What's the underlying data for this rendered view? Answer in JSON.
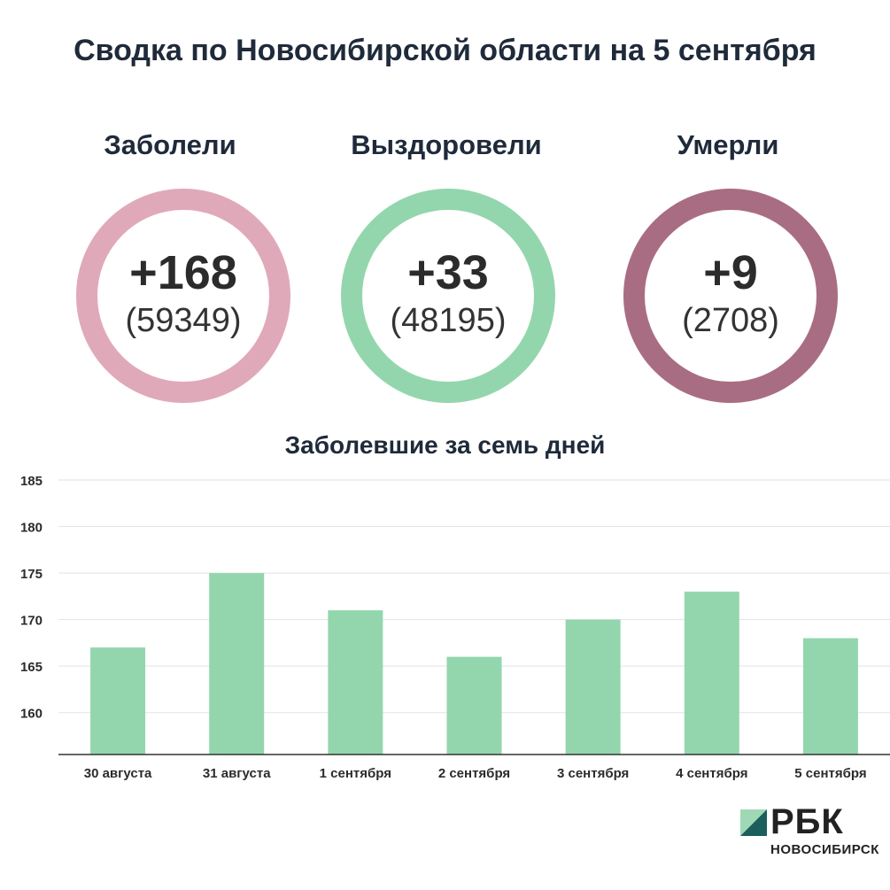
{
  "title": "Сводка по Новосибирской области на 5 сентября",
  "stats": [
    {
      "label": "Заболели",
      "value": "+168",
      "total": "(59349)",
      "color": "#e0a9ba"
    },
    {
      "label": "Выздоровели",
      "value": "+33",
      "total": "(48195)",
      "color": "#93d6ad"
    },
    {
      "label": "Умерли",
      "value": "+9",
      "total": "(2708)",
      "color": "#a96d83"
    }
  ],
  "chart_data": {
    "type": "bar",
    "title": "Заболевшие за семь дней",
    "categories": [
      "30 августа",
      "31 августа",
      "1 сентября",
      "2 сентября",
      "3 сентября",
      "4 сентября",
      "5 сентября"
    ],
    "values": [
      167,
      175,
      171,
      166,
      170,
      173,
      168
    ],
    "ylim": [
      155.5,
      185
    ],
    "yticks": [
      160,
      165,
      170,
      175,
      180,
      185
    ],
    "grid": true,
    "bar_color": "#93d6ad"
  },
  "logo": {
    "name": "РБК",
    "sub": "НОВОСИБИРСК",
    "colors": [
      "#9fd8b5",
      "#1b5e5b"
    ]
  }
}
